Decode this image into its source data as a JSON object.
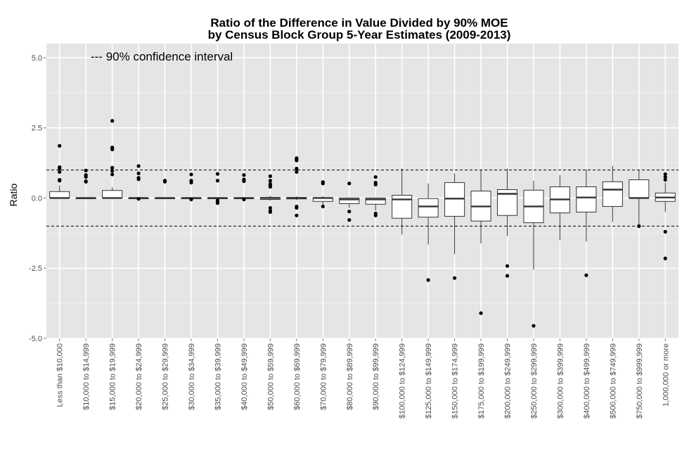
{
  "chart_data": {
    "type": "box",
    "title": "Ratio of the Difference in Value Divided by 90% MOE",
    "subtitle": "by Census Block Group 5-Year Estimates (2009-2013)",
    "xlabel": "",
    "ylabel": "Ratio",
    "ylim": [
      -5,
      5.5
    ],
    "y_ticks": [
      -5.0,
      -2.5,
      0.0,
      2.5,
      5.0
    ],
    "y_tick_labels": [
      "-5.0",
      "-2.5",
      "0.0",
      "2.5",
      "5.0"
    ],
    "annotation": "--- 90% confidence interval",
    "reference_lines": [
      1.0,
      -1.0
    ],
    "grid": true,
    "categories": [
      "Less than $10,000",
      "$10,000 to $14,999",
      "$15,000 to $19,999",
      "$20,000 to $24,999",
      "$25,000 to $29,999",
      "$30,000 to $34,999",
      "$35,000 to $39,999",
      "$40,000 to $49,999",
      "$50,000 to $59,999",
      "$60,000 to $69,999",
      "$70,000 to $79,999",
      "$80,000 to $89,999",
      "$90,000 to $99,999",
      "$100,000 to $124,999",
      "$125,000 to $149,999",
      "$150,000 to $174,999",
      "$175,000 to $199,999",
      "$200,000 to $249,999",
      "$250,000 to $299,999",
      "$300,000 to $399,999",
      "$400,000 to $499,999",
      "$500,000 to $749,999",
      "$750,000 to $999,999",
      "1,000,000 or more"
    ],
    "boxes": [
      {
        "wlow": 0.0,
        "q1": 0.0,
        "median": 0.0,
        "q3": 0.23,
        "whigh": 0.45,
        "outliers": [
          1.86,
          1.1,
          1.05,
          0.93,
          0.65,
          0.62
        ]
      },
      {
        "wlow": 0.0,
        "q1": 0.0,
        "median": 0.0,
        "q3": 0.0,
        "whigh": 0.0,
        "outliers": [
          0.98,
          0.82,
          0.75,
          0.6,
          0.58
        ]
      },
      {
        "wlow": 0.0,
        "q1": 0.0,
        "median": 0.0,
        "q3": 0.27,
        "whigh": 0.38,
        "outliers": [
          2.75,
          1.8,
          1.76,
          1.73,
          1.08,
          0.97,
          0.84
        ]
      },
      {
        "wlow": 0.0,
        "q1": 0.0,
        "median": 0.0,
        "q3": 0.0,
        "whigh": 0.0,
        "outliers": [
          1.14,
          0.88,
          0.72,
          0.67,
          -0.03
        ]
      },
      {
        "wlow": 0.0,
        "q1": 0.0,
        "median": 0.0,
        "q3": 0.0,
        "whigh": 0.0,
        "outliers": [
          0.62,
          0.58
        ]
      },
      {
        "wlow": 0.0,
        "q1": 0.0,
        "median": 0.0,
        "q3": 0.0,
        "whigh": 0.0,
        "outliers": [
          0.84,
          0.62,
          0.55,
          -0.05
        ]
      },
      {
        "wlow": 0.0,
        "q1": 0.0,
        "median": 0.0,
        "q3": 0.0,
        "whigh": 0.0,
        "outliers": [
          0.86,
          0.62,
          -0.08,
          -0.15,
          -0.18
        ]
      },
      {
        "wlow": 0.0,
        "q1": 0.0,
        "median": 0.0,
        "q3": 0.0,
        "whigh": 0.0,
        "outliers": [
          0.82,
          0.66,
          0.6,
          -0.05
        ]
      },
      {
        "wlow": -0.1,
        "q1": -0.05,
        "median": 0.0,
        "q3": 0.02,
        "whigh": 0.08,
        "outliers": [
          0.78,
          0.62,
          0.5,
          0.45,
          0.4,
          -0.35,
          -0.45,
          -0.5
        ]
      },
      {
        "wlow": -0.08,
        "q1": -0.03,
        "median": 0.0,
        "q3": 0.02,
        "whigh": 0.06,
        "outliers": [
          1.42,
          1.38,
          1.34,
          1.05,
          0.93,
          -0.3,
          -0.35,
          -0.62
        ]
      },
      {
        "wlow": -0.25,
        "q1": -0.12,
        "median": 0.0,
        "q3": 0.0,
        "whigh": 0.06,
        "outliers": [
          0.57,
          0.52,
          -0.3
        ]
      },
      {
        "wlow": -0.35,
        "q1": -0.2,
        "median": -0.05,
        "q3": 0.0,
        "whigh": 0.0,
        "outliers": [
          0.52,
          -0.48,
          -0.78
        ]
      },
      {
        "wlow": -0.45,
        "q1": -0.22,
        "median": -0.05,
        "q3": 0.0,
        "whigh": 0.0,
        "outliers": [
          0.75,
          0.55,
          0.48,
          -0.55,
          -0.62
        ]
      },
      {
        "wlow": -1.3,
        "q1": -0.72,
        "median": -0.05,
        "q3": 0.1,
        "whigh": 1.05,
        "outliers": []
      },
      {
        "wlow": -1.65,
        "q1": -0.68,
        "median": -0.3,
        "q3": -0.02,
        "whigh": 0.52,
        "outliers": [
          -2.92
        ]
      },
      {
        "wlow": -2.0,
        "q1": -0.65,
        "median": -0.02,
        "q3": 0.55,
        "whigh": 0.88,
        "outliers": [
          -2.85
        ]
      },
      {
        "wlow": -1.62,
        "q1": -0.82,
        "median": -0.3,
        "q3": 0.25,
        "whigh": 1.0,
        "outliers": [
          -4.1
        ]
      },
      {
        "wlow": -1.35,
        "q1": -0.62,
        "median": 0.15,
        "q3": 0.3,
        "whigh": 1.05,
        "outliers": [
          -2.42,
          -2.77
        ]
      },
      {
        "wlow": -2.55,
        "q1": -0.88,
        "median": -0.3,
        "q3": 0.28,
        "whigh": 0.62,
        "outliers": [
          -4.55
        ]
      },
      {
        "wlow": -1.5,
        "q1": -0.53,
        "median": -0.05,
        "q3": 0.4,
        "whigh": 0.82,
        "outliers": []
      },
      {
        "wlow": -1.55,
        "q1": -0.5,
        "median": 0.02,
        "q3": 0.4,
        "whigh": 1.02,
        "outliers": [
          -2.75
        ]
      },
      {
        "wlow": -0.85,
        "q1": -0.3,
        "median": 0.3,
        "q3": 0.58,
        "whigh": 1.15,
        "outliers": []
      },
      {
        "wlow": -1.0,
        "q1": 0.0,
        "median": 0.0,
        "q3": 0.65,
        "whigh": 1.0,
        "outliers": [
          -1.0
        ]
      },
      {
        "wlow": -0.5,
        "q1": -0.12,
        "median": 0.02,
        "q3": 0.18,
        "whigh": 0.55,
        "outliers": [
          0.85,
          0.75,
          0.65,
          -1.2,
          -2.15
        ]
      }
    ]
  },
  "colors": {
    "panel_background": "#e5e5e5",
    "grid_major": "#ffffff",
    "grid_minor": "#f2f2f2",
    "box_fill": "#ffffff",
    "box_line": "#333333",
    "point": "#000000",
    "reference_line": "#000000"
  }
}
